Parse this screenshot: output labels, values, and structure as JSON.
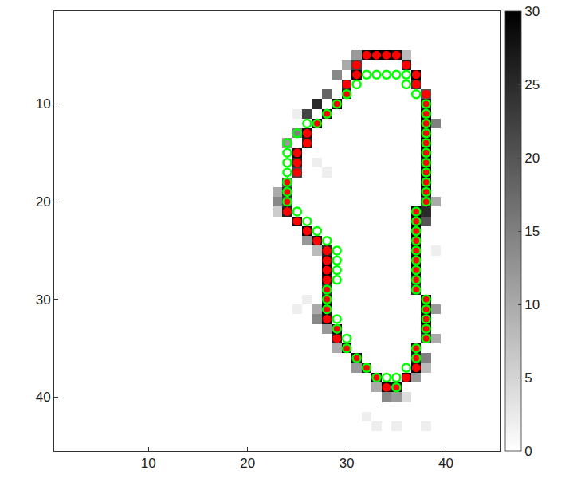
{
  "chart_data": {
    "type": "heatmap",
    "xlim": [
      0.5,
      45.5
    ],
    "ylim": [
      45.5,
      0.5
    ],
    "xticks": [
      10,
      20,
      30,
      40
    ],
    "yticks": [
      10,
      20,
      30,
      40
    ],
    "grid": false,
    "colorbar": {
      "range": [
        0,
        30
      ],
      "ticks": [
        0,
        5,
        10,
        15,
        20,
        25,
        30
      ],
      "colors": [
        "#ffffff",
        "#000000"
      ]
    },
    "cells": [
      [
        32,
        5,
        28
      ],
      [
        33,
        5,
        30
      ],
      [
        34,
        5,
        30
      ],
      [
        35,
        5,
        28
      ],
      [
        36,
        6,
        26
      ],
      [
        37,
        7,
        30
      ],
      [
        37,
        8,
        24
      ],
      [
        38,
        9,
        20
      ],
      [
        38,
        10,
        26
      ],
      [
        38,
        11,
        30
      ],
      [
        38,
        12,
        30
      ],
      [
        38,
        13,
        28
      ],
      [
        38,
        14,
        30
      ],
      [
        38,
        15,
        30
      ],
      [
        38,
        16,
        26
      ],
      [
        38,
        17,
        30
      ],
      [
        38,
        18,
        30
      ],
      [
        38,
        19,
        28
      ],
      [
        38,
        20,
        22
      ],
      [
        37,
        21,
        30
      ],
      [
        37,
        22,
        28
      ],
      [
        37,
        23,
        30
      ],
      [
        37,
        24,
        30
      ],
      [
        37,
        25,
        28
      ],
      [
        37,
        26,
        30
      ],
      [
        37,
        27,
        30
      ],
      [
        37,
        28,
        26
      ],
      [
        37,
        29,
        24
      ],
      [
        38,
        30,
        30
      ],
      [
        38,
        31,
        28
      ],
      [
        38,
        32,
        30
      ],
      [
        38,
        33,
        26
      ],
      [
        38,
        34,
        22
      ],
      [
        37,
        35,
        28
      ],
      [
        37,
        36,
        26
      ],
      [
        37,
        37,
        30
      ],
      [
        36,
        38,
        30
      ],
      [
        35,
        39,
        28
      ],
      [
        34,
        39,
        30
      ],
      [
        33,
        38,
        30
      ],
      [
        32,
        37,
        26
      ],
      [
        31,
        36,
        28
      ],
      [
        30,
        35,
        30
      ],
      [
        29,
        34,
        26
      ],
      [
        29,
        33,
        30
      ],
      [
        28,
        32,
        28
      ],
      [
        28,
        31,
        30
      ],
      [
        28,
        30,
        26
      ],
      [
        28,
        29,
        24
      ],
      [
        28,
        28,
        28
      ],
      [
        28,
        27,
        30
      ],
      [
        28,
        26,
        28
      ],
      [
        28,
        25,
        26
      ],
      [
        27,
        24,
        28
      ],
      [
        26,
        23,
        30
      ],
      [
        25,
        22,
        28
      ],
      [
        24,
        21,
        26
      ],
      [
        24,
        20,
        22
      ],
      [
        24,
        19,
        24
      ],
      [
        24,
        18,
        20
      ],
      [
        25,
        17,
        22
      ],
      [
        25,
        16,
        26
      ],
      [
        25,
        15,
        28
      ],
      [
        26,
        14,
        26
      ],
      [
        26,
        13,
        28
      ],
      [
        27,
        12,
        30
      ],
      [
        28,
        11,
        28
      ],
      [
        29,
        10,
        30
      ],
      [
        30,
        9,
        26
      ],
      [
        30,
        8,
        24
      ],
      [
        31,
        7,
        28
      ],
      [
        31,
        6,
        22
      ],
      [
        31,
        5,
        12
      ],
      [
        36,
        5,
        8
      ],
      [
        30,
        6,
        10
      ],
      [
        29,
        7,
        14
      ],
      [
        28,
        9,
        18
      ],
      [
        27,
        10,
        25
      ],
      [
        26,
        11,
        22
      ],
      [
        25,
        13,
        15
      ],
      [
        24,
        14,
        12
      ],
      [
        23,
        19,
        10
      ],
      [
        23,
        20,
        14
      ],
      [
        23,
        21,
        6
      ],
      [
        26,
        24,
        12
      ],
      [
        27,
        25,
        8
      ],
      [
        27,
        31,
        10
      ],
      [
        27,
        32,
        14
      ],
      [
        28,
        33,
        12
      ],
      [
        29,
        35,
        10
      ],
      [
        31,
        37,
        12
      ],
      [
        33,
        39,
        10
      ],
      [
        34,
        40,
        14
      ],
      [
        35,
        40,
        12
      ],
      [
        36,
        40,
        4
      ],
      [
        39,
        12,
        15
      ],
      [
        39,
        20,
        10
      ],
      [
        38,
        21,
        25
      ],
      [
        38,
        22,
        20
      ],
      [
        39,
        31,
        12
      ],
      [
        39,
        34,
        10
      ],
      [
        38,
        36,
        15
      ],
      [
        38,
        37,
        8
      ],
      [
        37,
        38,
        12
      ],
      [
        27,
        16,
        2
      ],
      [
        28,
        17,
        2
      ],
      [
        26,
        30,
        2
      ],
      [
        25,
        31,
        2
      ],
      [
        25,
        11,
        2
      ],
      [
        39,
        25,
        2
      ],
      [
        33,
        43,
        2
      ],
      [
        35,
        43,
        2
      ],
      [
        32,
        42,
        2
      ],
      [
        38,
        43,
        2
      ]
    ],
    "series": [
      {
        "color": "#ff0000",
        "marker": "filled circle",
        "points": [
          [
            32,
            5
          ],
          [
            33,
            5
          ],
          [
            34,
            5
          ],
          [
            35,
            5
          ],
          [
            36,
            6
          ],
          [
            37,
            7
          ],
          [
            37,
            8
          ],
          [
            38,
            9
          ],
          [
            38,
            10
          ],
          [
            38,
            11
          ],
          [
            38,
            12
          ],
          [
            38,
            13
          ],
          [
            38,
            14
          ],
          [
            38,
            15
          ],
          [
            38,
            16
          ],
          [
            38,
            17
          ],
          [
            38,
            18
          ],
          [
            38,
            19
          ],
          [
            38,
            20
          ],
          [
            37,
            21
          ],
          [
            37,
            22
          ],
          [
            37,
            23
          ],
          [
            37,
            24
          ],
          [
            37,
            25
          ],
          [
            37,
            26
          ],
          [
            37,
            27
          ],
          [
            37,
            28
          ],
          [
            37,
            29
          ],
          [
            38,
            30
          ],
          [
            38,
            31
          ],
          [
            38,
            32
          ],
          [
            38,
            33
          ],
          [
            38,
            34
          ],
          [
            37,
            35
          ],
          [
            37,
            36
          ],
          [
            37,
            37
          ],
          [
            36,
            38
          ],
          [
            35,
            39
          ],
          [
            34,
            39
          ],
          [
            33,
            38
          ],
          [
            32,
            37
          ],
          [
            31,
            36
          ],
          [
            30,
            35
          ],
          [
            29,
            34
          ],
          [
            29,
            33
          ],
          [
            28,
            32
          ],
          [
            28,
            31
          ],
          [
            28,
            30
          ],
          [
            28,
            29
          ],
          [
            28,
            28
          ],
          [
            28,
            27
          ],
          [
            28,
            26
          ],
          [
            28,
            25
          ],
          [
            27,
            24
          ],
          [
            26,
            23
          ],
          [
            25,
            22
          ],
          [
            24,
            21
          ],
          [
            24,
            20
          ],
          [
            24,
            19
          ],
          [
            24,
            18
          ],
          [
            25,
            17
          ],
          [
            25,
            16
          ],
          [
            25,
            15
          ],
          [
            26,
            14
          ],
          [
            26,
            13
          ],
          [
            27,
            12
          ],
          [
            28,
            11
          ],
          [
            29,
            10
          ],
          [
            30,
            9
          ],
          [
            30,
            8
          ],
          [
            31,
            7
          ],
          [
            31,
            6
          ]
        ]
      },
      {
        "color": "#00ff00",
        "marker": "open circle",
        "points": [
          [
            32,
            7
          ],
          [
            33,
            7
          ],
          [
            34,
            7
          ],
          [
            35,
            7
          ],
          [
            36,
            7
          ],
          [
            36,
            8
          ],
          [
            37,
            9
          ],
          [
            38,
            10
          ],
          [
            38,
            11
          ],
          [
            38,
            12
          ],
          [
            38,
            13
          ],
          [
            38,
            14
          ],
          [
            38,
            15
          ],
          [
            38,
            16
          ],
          [
            38,
            17
          ],
          [
            38,
            18
          ],
          [
            38,
            19
          ],
          [
            38,
            20
          ],
          [
            37,
            21
          ],
          [
            37,
            22
          ],
          [
            37,
            23
          ],
          [
            37,
            24
          ],
          [
            37,
            25
          ],
          [
            37,
            26
          ],
          [
            37,
            27
          ],
          [
            37,
            28
          ],
          [
            37,
            29
          ],
          [
            38,
            30
          ],
          [
            38,
            31
          ],
          [
            38,
            32
          ],
          [
            38,
            33
          ],
          [
            38,
            34
          ],
          [
            37,
            35
          ],
          [
            37,
            36
          ],
          [
            36,
            37
          ],
          [
            35,
            38
          ],
          [
            35,
            39
          ],
          [
            34,
            38
          ],
          [
            33,
            38
          ],
          [
            32,
            37
          ],
          [
            31,
            36
          ],
          [
            30,
            35
          ],
          [
            30,
            34
          ],
          [
            29,
            33
          ],
          [
            29,
            32
          ],
          [
            28,
            31
          ],
          [
            28,
            30
          ],
          [
            28,
            29
          ],
          [
            29,
            28
          ],
          [
            29,
            27
          ],
          [
            29,
            26
          ],
          [
            29,
            25
          ],
          [
            28,
            24
          ],
          [
            27,
            23
          ],
          [
            26,
            22
          ],
          [
            25,
            21
          ],
          [
            24,
            20
          ],
          [
            24,
            19
          ],
          [
            24,
            18
          ],
          [
            24,
            17
          ],
          [
            24,
            16
          ],
          [
            24,
            15
          ],
          [
            24,
            14
          ],
          [
            25,
            13
          ],
          [
            26,
            12
          ],
          [
            27,
            12
          ],
          [
            28,
            11
          ],
          [
            29,
            10
          ],
          [
            30,
            9
          ],
          [
            31,
            8
          ]
        ]
      }
    ]
  }
}
